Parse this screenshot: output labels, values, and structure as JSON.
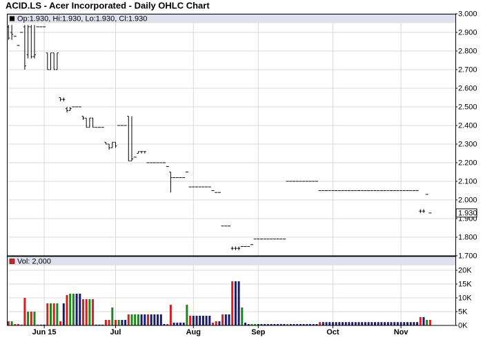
{
  "chart_data": [
    {
      "type": "ohlc",
      "title": "ACID.LS - Acer Incorporated - Daily OHLC Chart",
      "legend": "Op:1.930, Hi:1.930, Lo:1.930, Cl:1.930",
      "color": "#000000",
      "ylim": [
        1.7,
        3.0
      ],
      "yticks": [
        {
          "value": 1.7,
          "label": "1.700"
        },
        {
          "value": 1.8,
          "label": "1.800"
        },
        {
          "value": 1.9,
          "label": "1.900"
        },
        {
          "value": 2.0,
          "label": "2.000"
        },
        {
          "value": 2.1,
          "label": "2.100"
        },
        {
          "value": 2.2,
          "label": "2.200"
        },
        {
          "value": 2.3,
          "label": "2.300"
        },
        {
          "value": 2.4,
          "label": "2.400"
        },
        {
          "value": 2.5,
          "label": "2.500"
        },
        {
          "value": 2.6,
          "label": "2.600"
        },
        {
          "value": 2.7,
          "label": "2.700"
        },
        {
          "value": 2.8,
          "label": "2.800"
        },
        {
          "value": 2.9,
          "label": "2.900"
        },
        {
          "value": 3.0,
          "label": "3.000"
        }
      ],
      "last_price": {
        "value": 1.93,
        "label": "1.930"
      },
      "grid": true,
      "open": [
        2.93,
        2.9,
        2.88,
        2.83,
        2.9,
        2.93,
        2.78,
        2.93,
        2.77,
        2.93,
        2.93,
        2.93,
        2.79,
        2.7,
        2.79,
        2.7,
        2.55,
        2.54,
        2.49,
        2.48,
        2.5,
        2.5,
        2.5,
        2.45,
        2.44,
        2.39,
        2.44,
        2.39,
        2.39,
        2.39,
        2.31,
        2.3,
        2.28,
        2.31,
        2.4,
        2.4,
        2.4,
        2.45,
        2.21,
        2.23,
        2.25,
        2.26,
        2.26,
        2.2,
        2.2,
        2.2,
        2.2,
        2.2,
        2.2,
        2.18,
        2.15,
        2.12,
        2.12,
        2.12,
        2.12,
        2.15,
        2.07,
        2.07,
        2.07,
        2.07,
        2.07,
        2.07,
        2.07,
        2.05,
        2.04,
        2.04,
        1.86,
        1.86,
        1.86,
        1.74,
        1.74,
        1.74,
        1.75,
        1.75,
        1.75,
        1.76,
        1.79,
        1.79,
        1.79,
        1.79,
        1.79,
        1.79,
        1.79,
        1.79,
        1.79,
        1.79,
        2.1,
        2.1,
        2.1,
        2.1,
        2.1,
        2.1,
        2.1,
        2.1,
        2.1,
        2.1,
        2.05,
        2.05,
        2.05,
        2.05,
        2.05,
        2.05,
        2.05,
        2.05,
        2.05,
        2.05,
        2.05,
        2.05,
        2.05,
        2.05,
        2.05,
        2.05,
        2.05,
        2.05,
        2.05,
        2.05,
        2.05,
        2.05,
        2.05,
        2.05,
        2.05,
        2.05,
        2.05,
        2.05,
        2.05,
        2.05,
        2.05,
        1.94,
        1.94,
        2.03,
        1.93
      ],
      "high": [
        2.94,
        2.94,
        2.88,
        2.83,
        2.9,
        2.94,
        2.94,
        2.94,
        2.94,
        2.93,
        2.93,
        2.93,
        2.79,
        2.79,
        2.79,
        2.79,
        2.55,
        2.55,
        2.5,
        2.5,
        2.5,
        2.5,
        2.5,
        2.45,
        2.44,
        2.44,
        2.44,
        2.39,
        2.39,
        2.39,
        2.31,
        2.3,
        2.31,
        2.31,
        2.4,
        2.4,
        2.4,
        2.45,
        2.45,
        2.23,
        2.26,
        2.26,
        2.26,
        2.2,
        2.2,
        2.2,
        2.2,
        2.2,
        2.2,
        2.18,
        2.15,
        2.12,
        2.12,
        2.12,
        2.12,
        2.15,
        2.07,
        2.07,
        2.07,
        2.07,
        2.07,
        2.07,
        2.07,
        2.05,
        2.04,
        2.04,
        1.86,
        1.86,
        1.86,
        1.75,
        1.75,
        1.75,
        1.75,
        1.75,
        1.75,
        1.76,
        1.79,
        1.79,
        1.79,
        1.79,
        1.79,
        1.79,
        1.79,
        1.79,
        1.79,
        1.79,
        2.1,
        2.1,
        2.1,
        2.1,
        2.1,
        2.1,
        2.1,
        2.1,
        2.1,
        2.1,
        2.05,
        2.05,
        2.05,
        2.05,
        2.05,
        2.05,
        2.05,
        2.05,
        2.05,
        2.05,
        2.05,
        2.05,
        2.05,
        2.05,
        2.05,
        2.05,
        2.05,
        2.05,
        2.05,
        2.05,
        2.05,
        2.05,
        2.05,
        2.05,
        2.05,
        2.05,
        2.05,
        2.05,
        2.05,
        2.05,
        2.05,
        1.95,
        1.95,
        2.03,
        1.93
      ],
      "low": [
        2.86,
        2.86,
        2.88,
        2.83,
        2.9,
        2.7,
        2.76,
        2.76,
        2.76,
        2.93,
        2.93,
        2.93,
        2.7,
        2.7,
        2.7,
        2.7,
        2.53,
        2.53,
        2.47,
        2.48,
        2.5,
        2.5,
        2.5,
        2.43,
        2.39,
        2.39,
        2.39,
        2.39,
        2.39,
        2.39,
        2.3,
        2.27,
        2.28,
        2.28,
        2.4,
        2.4,
        2.4,
        2.21,
        2.21,
        2.23,
        2.25,
        2.25,
        2.25,
        2.2,
        2.2,
        2.2,
        2.2,
        2.2,
        2.2,
        2.18,
        2.04,
        2.12,
        2.12,
        2.12,
        2.12,
        2.15,
        2.07,
        2.07,
        2.07,
        2.07,
        2.07,
        2.07,
        2.07,
        2.05,
        2.04,
        2.04,
        1.86,
        1.86,
        1.86,
        1.73,
        1.73,
        1.73,
        1.75,
        1.75,
        1.75,
        1.76,
        1.79,
        1.79,
        1.79,
        1.79,
        1.79,
        1.79,
        1.79,
        1.79,
        1.79,
        1.79,
        2.1,
        2.1,
        2.1,
        2.1,
        2.1,
        2.1,
        2.1,
        2.1,
        2.1,
        2.1,
        2.05,
        2.05,
        2.05,
        2.05,
        2.05,
        2.05,
        2.05,
        2.05,
        2.05,
        2.05,
        2.05,
        2.05,
        2.05,
        2.05,
        2.05,
        2.05,
        2.05,
        2.05,
        2.05,
        2.05,
        2.05,
        2.05,
        2.05,
        2.05,
        2.05,
        2.05,
        2.05,
        2.05,
        2.05,
        2.05,
        2.05,
        1.93,
        1.93,
        2.03,
        1.93
      ],
      "close": [
        2.87,
        2.89,
        2.88,
        2.83,
        2.9,
        2.72,
        2.93,
        2.77,
        2.78,
        2.93,
        2.93,
        2.93,
        2.7,
        2.79,
        2.7,
        2.79,
        2.54,
        2.54,
        2.48,
        2.49,
        2.5,
        2.5,
        2.5,
        2.44,
        2.39,
        2.44,
        2.39,
        2.39,
        2.39,
        2.39,
        2.3,
        2.28,
        2.31,
        2.29,
        2.4,
        2.4,
        2.4,
        2.21,
        2.22,
        2.23,
        2.26,
        2.26,
        2.26,
        2.2,
        2.2,
        2.2,
        2.2,
        2.2,
        2.2,
        2.18,
        2.12,
        2.12,
        2.12,
        2.12,
        2.12,
        2.15,
        2.07,
        2.07,
        2.07,
        2.07,
        2.07,
        2.07,
        2.07,
        2.05,
        2.04,
        2.04,
        1.86,
        1.86,
        1.86,
        1.74,
        1.74,
        1.74,
        1.75,
        1.75,
        1.75,
        1.76,
        1.79,
        1.79,
        1.79,
        1.79,
        1.79,
        1.79,
        1.79,
        1.79,
        1.79,
        1.79,
        2.1,
        2.1,
        2.1,
        2.1,
        2.1,
        2.1,
        2.1,
        2.1,
        2.1,
        2.1,
        2.05,
        2.05,
        2.05,
        2.05,
        2.05,
        2.05,
        2.05,
        2.05,
        2.05,
        2.05,
        2.05,
        2.05,
        2.05,
        2.05,
        2.05,
        2.05,
        2.05,
        2.05,
        2.05,
        2.05,
        2.05,
        2.05,
        2.05,
        2.05,
        2.05,
        2.05,
        2.05,
        2.05,
        2.05,
        2.05,
        2.05,
        1.94,
        1.94,
        2.03,
        1.93
      ]
    },
    {
      "type": "volume",
      "legend": "Vol: 2,000",
      "colors": {
        "up": "#178a17",
        "down": "#d42020",
        "flat": "#1b1b6e"
      },
      "ylim": [
        0,
        25000
      ],
      "yticks": [
        {
          "value": 0,
          "label": "0K"
        },
        {
          "value": 5000,
          "label": "5K"
        },
        {
          "value": 10000,
          "label": "10K"
        },
        {
          "value": 15000,
          "label": "15K"
        },
        {
          "value": 20000,
          "label": "20K"
        }
      ],
      "grid": true,
      "categories": [
        null,
        null,
        null,
        null,
        null,
        null,
        null,
        null,
        null,
        null,
        null,
        "Jun 15",
        null,
        null,
        null,
        null,
        null,
        null,
        null,
        null,
        null,
        null,
        null,
        null,
        null,
        null,
        null,
        null,
        null,
        null,
        null,
        null,
        null,
        "Jul",
        null,
        null,
        null,
        null,
        null,
        null,
        null,
        null,
        null,
        null,
        null,
        null,
        null,
        null,
        null,
        null,
        null,
        null,
        null,
        null,
        null,
        null,
        null,
        "Aug",
        null,
        null,
        null,
        null,
        null,
        null,
        null,
        null,
        null,
        null,
        null,
        null,
        null,
        null,
        null,
        null,
        null,
        null,
        null,
        "Sep",
        null,
        null,
        null,
        null,
        null,
        null,
        null,
        null,
        null,
        null,
        null,
        null,
        null,
        null,
        null,
        null,
        null,
        null,
        null,
        null,
        null,
        null,
        "Oct",
        null,
        null,
        null,
        null,
        null,
        null,
        null,
        null,
        null,
        null,
        null,
        null,
        null,
        null,
        null,
        null,
        null,
        null,
        null,
        null,
        "Nov",
        null,
        null,
        null,
        null,
        null,
        null,
        null,
        null,
        null
      ],
      "values": [
        1500,
        1500,
        500,
        500,
        300,
        10000,
        5000,
        5000,
        5000,
        300,
        300,
        300,
        8000,
        8000,
        8000,
        8000,
        1500,
        8000,
        11000,
        11500,
        11500,
        11500,
        11500,
        9500,
        9500,
        9500,
        9500,
        300,
        300,
        300,
        2000,
        2000,
        6500,
        2000,
        2000,
        2000,
        2000,
        4000,
        4000,
        4000,
        4000,
        4000,
        4000,
        4000,
        4000,
        4000,
        4000,
        4000,
        500,
        500,
        7500,
        1000,
        1000,
        1000,
        1000,
        7500,
        3500,
        3500,
        3500,
        3500,
        3500,
        3500,
        3500,
        1000,
        1500,
        1500,
        4000,
        4000,
        4000,
        16000,
        16000,
        16000,
        6500,
        1000,
        500,
        500,
        500,
        500,
        500,
        500,
        500,
        500,
        500,
        500,
        500,
        500,
        500,
        500,
        500,
        500,
        500,
        500,
        500,
        500,
        500,
        500,
        1200,
        1200,
        1200,
        1200,
        1200,
        1200,
        1200,
        1200,
        1200,
        1200,
        1200,
        1200,
        1200,
        1200,
        1200,
        1200,
        1200,
        1200,
        1200,
        1200,
        1200,
        1200,
        1200,
        1200,
        1200,
        1200,
        1200,
        1200,
        1200,
        1200,
        1200,
        3000,
        3000,
        2000,
        2000
      ]
    }
  ]
}
